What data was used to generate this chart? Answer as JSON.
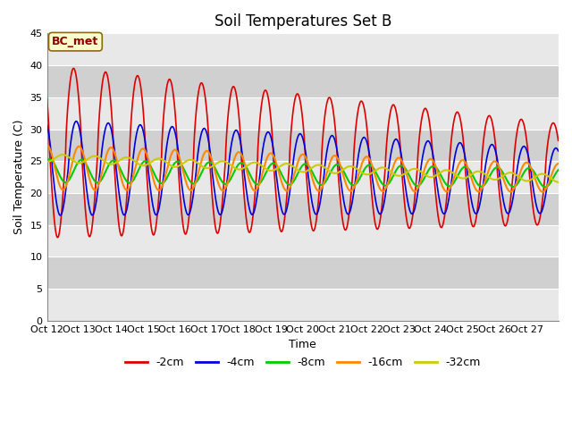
{
  "title": "Soil Temperatures Set B",
  "xlabel": "Time",
  "ylabel": "Soil Temperature (C)",
  "ylim": [
    0,
    45
  ],
  "yticks": [
    0,
    5,
    10,
    15,
    20,
    25,
    30,
    35,
    40,
    45
  ],
  "annotation_text": "BC_met",
  "annotation_bg": "#ffffcc",
  "annotation_border": "#8B6914",
  "colors": {
    "-2cm": "#dd0000",
    "-4cm": "#0000dd",
    "-8cm": "#00cc00",
    "-16cm": "#ff8800",
    "-32cm": "#cccc00"
  },
  "plot_bg_light": "#f0f0f0",
  "plot_bg_dark": "#d8d8d8",
  "fig_bg": "#ffffff",
  "grid_color": "#ffffff",
  "title_fontsize": 12,
  "label_fontsize": 9,
  "tick_fontsize": 8
}
